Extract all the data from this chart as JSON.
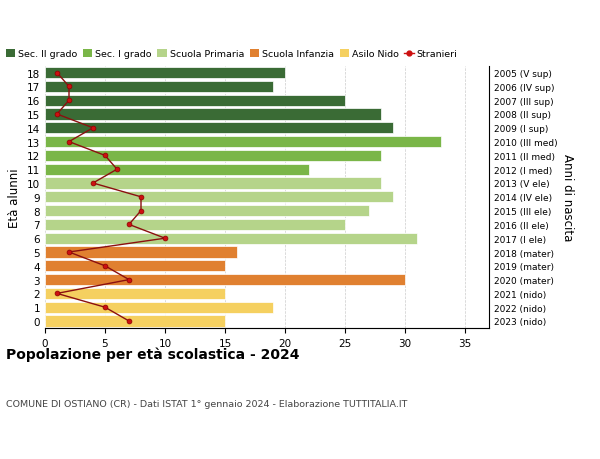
{
  "ages": [
    18,
    17,
    16,
    15,
    14,
    13,
    12,
    11,
    10,
    9,
    8,
    7,
    6,
    5,
    4,
    3,
    2,
    1,
    0
  ],
  "right_labels": [
    "2005 (V sup)",
    "2006 (IV sup)",
    "2007 (III sup)",
    "2008 (II sup)",
    "2009 (I sup)",
    "2010 (III med)",
    "2011 (II med)",
    "2012 (I med)",
    "2013 (V ele)",
    "2014 (IV ele)",
    "2015 (III ele)",
    "2016 (II ele)",
    "2017 (I ele)",
    "2018 (mater)",
    "2019 (mater)",
    "2020 (mater)",
    "2021 (nido)",
    "2022 (nido)",
    "2023 (nido)"
  ],
  "bar_values": [
    20,
    19,
    25,
    28,
    29,
    33,
    28,
    22,
    28,
    29,
    27,
    25,
    31,
    16,
    15,
    30,
    15,
    19,
    15
  ],
  "bar_colors": [
    "#3a6b35",
    "#3a6b35",
    "#3a6b35",
    "#3a6b35",
    "#3a6b35",
    "#7ab648",
    "#7ab648",
    "#7ab648",
    "#b5d48a",
    "#b5d48a",
    "#b5d48a",
    "#b5d48a",
    "#b5d48a",
    "#e08030",
    "#e08030",
    "#e08030",
    "#f5d060",
    "#f5d060",
    "#f5d060"
  ],
  "stranieri_values": [
    1,
    2,
    2,
    1,
    4,
    2,
    5,
    6,
    4,
    8,
    8,
    7,
    10,
    2,
    5,
    7,
    1,
    5,
    7
  ],
  "legend_labels": [
    "Sec. II grado",
    "Sec. I grado",
    "Scuola Primaria",
    "Scuola Infanzia",
    "Asilo Nido",
    "Stranieri"
  ],
  "legend_colors": [
    "#3a6b35",
    "#7ab648",
    "#b5d48a",
    "#e08030",
    "#f5d060",
    "#8b0000"
  ],
  "ylabel_left": "Età alunni",
  "ylabel_right": "Anni di nascita",
  "title": "Popolazione per età scolastica - 2024",
  "subtitle": "COMUNE DI OSTIANO (CR) - Dati ISTAT 1° gennaio 2024 - Elaborazione TUTTITALIA.IT",
  "xlim": [
    0,
    37
  ],
  "xticks": [
    0,
    5,
    10,
    15,
    20,
    25,
    30,
    35
  ],
  "bg_color": "#ffffff",
  "bar_height": 0.82,
  "grid_color": "#cccccc"
}
